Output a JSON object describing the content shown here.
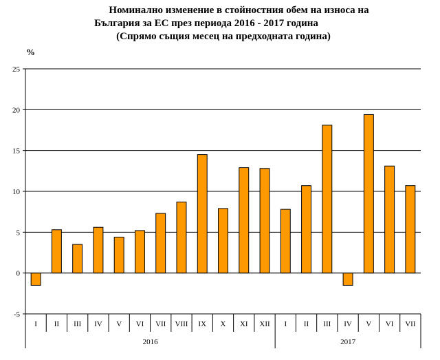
{
  "chart_data": {
    "type": "bar",
    "title": [
      "Номинално изменение в стойностния обем  на износа на",
      "България за ЕС през периода 2016 - 2017 година",
      "(Спрямо същия месец на предходната година)"
    ],
    "ylabel": "%",
    "ylim": [
      -5,
      25
    ],
    "yticks": [
      "25",
      "20",
      "15",
      "10",
      "5",
      "0",
      "-5"
    ],
    "categories": [
      "I",
      "II",
      "III",
      "IV",
      "V",
      "VI",
      "VII",
      "VIII",
      "IX",
      "X",
      "XI",
      "XII",
      "I",
      "II",
      "III",
      "IV",
      "V",
      "VI",
      "VII"
    ],
    "groups": [
      {
        "label": "2016",
        "count": 12
      },
      {
        "label": "2017",
        "count": 7
      }
    ],
    "values": [
      -1.5,
      5.3,
      3.5,
      5.6,
      4.4,
      5.2,
      7.3,
      8.7,
      14.5,
      7.9,
      12.9,
      12.8,
      7.8,
      10.7,
      18.1,
      -1.5,
      19.4,
      13.1,
      10.7
    ],
    "colors": {
      "bar": "#FF9900",
      "bar_stroke": "#000000",
      "grid": "#000000"
    },
    "grid": true,
    "legend": "none"
  }
}
